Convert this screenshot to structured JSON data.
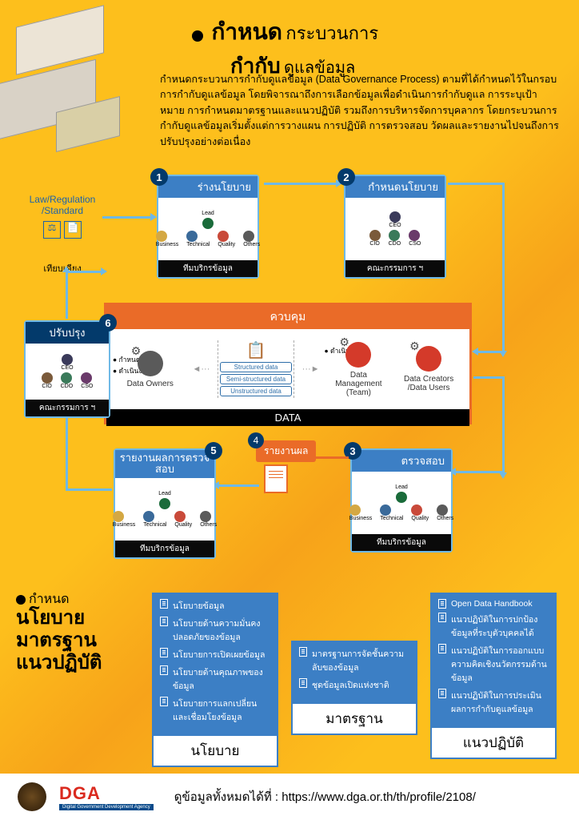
{
  "colors": {
    "bg_primary": "#fdbf1c",
    "bg_secondary": "#f7a31a",
    "blue_header": "#3c7fc5",
    "blue_border": "#6fb9e6",
    "navy": "#033a6b",
    "orange": "#ea6b28",
    "black": "#000000",
    "white": "#ffffff",
    "dga_red": "#da2a1f"
  },
  "header": {
    "title_bold_1": "กำหนด",
    "title_light_1": "กระบวนการ",
    "title_bold_2": "กำกับ",
    "title_light_2": "ดูแลข้อมูล",
    "intro": "กำหนดกระบวนการกำกับดูแลข้อมูล (Data Governance Process) ตามที่ได้กำหนดไว้ในกรอบการกำกับดูแลข้อมูล โดยพิจารณาถึงการเลือกข้อมูลเพื่อดำเนินการกำกับดูแล การระบุเป้าหมาย การกำหนดมาตรฐานและแนวปฏิบัติ รวมถึงการบริหารจัดการบุคลากร โดยกระบวนการกำกับดูแลข้อมูลเริ่มตั้งแต่การวางแผน การปฏิบัติ การตรวจสอบ วัดผลและรายงานไปจนถึงการปรับปรุงอย่างต่อเนื่อง"
  },
  "law_box": {
    "line1": "Law/Regulation",
    "line2": "/Standard",
    "compare": "เทียบเคียง"
  },
  "steps": {
    "s1": {
      "num": "1",
      "title": "ร่างนโยบาย",
      "lead": "Lead",
      "footer": "ทีมบริกรข้อมูล"
    },
    "s2": {
      "num": "2",
      "title": "กำหนดนโยบาย",
      "footer": "คณะกรรมการ ฯ"
    },
    "s3": {
      "num": "3",
      "title": "ตรวจสอบ",
      "lead": "Lead",
      "footer": "ทีมบริกรข้อมูล"
    },
    "s4": {
      "num": "4",
      "title": "รายงานผล"
    },
    "s5": {
      "num": "5",
      "title": "รายงานผลการตรวจสอบ",
      "lead": "Lead",
      "footer": "ทีมบริกรข้อมูล"
    },
    "s6": {
      "num": "6",
      "title": "ปรับปรุง",
      "footer": "คณะกรรมการ ฯ"
    }
  },
  "roles": {
    "ceo": "CEO",
    "cio": "CIO",
    "cdo": "CDO",
    "cso": "CSO",
    "business": "Business",
    "technical": "Technical",
    "quality": "Quality",
    "others": "Others"
  },
  "control": {
    "header": "ควบคุม",
    "footer": "DATA",
    "bullets_left_1": "กำหนดสิทธิ",
    "bullets_left_2": "ดำเนินงาน",
    "bullets_right": "ดำเนินงาน",
    "owners": "Data Owners",
    "mgmt": "Data Management (Team)",
    "creators_1": "Data Creators",
    "creators_2": "/Data Users",
    "pill1": "Structured data",
    "pill2": "Semi-structured data",
    "pill3": "Unstructured data"
  },
  "bottom": {
    "t_small": "กำหนด",
    "t1": "นโยบาย",
    "t2": "มาตรฐาน",
    "t3": "แนวปฏิบัติ",
    "card1_label": "นโยบาย",
    "card2_label": "มาตรฐาน",
    "card3_label": "แนวปฏิบัติ",
    "card1_items": [
      "นโยบายข้อมูล",
      "นโยบายด้านความมั่นคงปลอดภัยของข้อมูล",
      "นโยบายการเปิดเผยข้อมูล",
      "นโยบายด้านคุณภาพของข้อมูล",
      "นโยบายการแลกเปลี่ยนและเชื่อมโยงข้อมูล"
    ],
    "card2_items": [
      "มาตรฐานการจัดชั้นความลับของข้อมูล",
      "ชุดข้อมูลเปิดแห่งชาติ"
    ],
    "card3_items": [
      "Open Data Handbook",
      "แนวปฏิบัติในการปกป้องข้อมูลที่ระบุตัวบุคคลได้",
      "แนวปฏิบัติในการออกแบบความคิดเชิงนวัตกรรมด้านข้อมูล",
      "แนวปฏิบัติในการประเมินผลการกำกับดูแลข้อมูล"
    ]
  },
  "footer": {
    "dga": "DGA",
    "dga_sub": "Digital Government Development Agency",
    "text_prefix": "ดูข้อมูลทั้งหมดได้ที่ : ",
    "url": "https://www.dga.or.th/th/profile/2108/"
  },
  "person_colors": {
    "lead": "#1a6b3a",
    "business": "#d4a843",
    "technical": "#3a6a9a",
    "quality": "#c94a3a",
    "others": "#5a5a5a",
    "ceo": "#3a3a5a",
    "cio": "#7a5a3a",
    "cdo": "#3a7a5a",
    "cso": "#6a3a6a",
    "owner": "#5a5a5a",
    "mgmt": "#d43a2a",
    "user": "#d43a2a"
  }
}
